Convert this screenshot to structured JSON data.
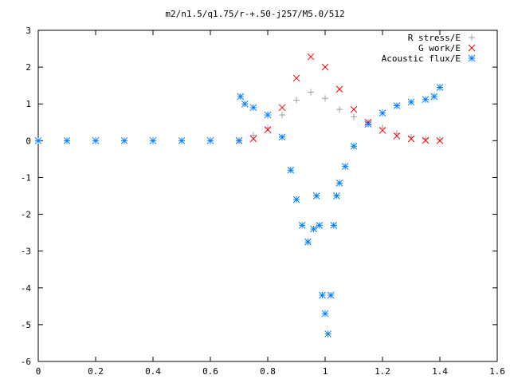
{
  "chart_data": {
    "type": "scatter",
    "title": "m2/n1.5/q1.75/r-+.50-j257/M5.0/512",
    "xlabel": "",
    "ylabel": "",
    "xlim": [
      0,
      1.6
    ],
    "ylim": [
      -6,
      3
    ],
    "x_ticks": [
      "0",
      "0.2",
      "0.4",
      "0.6",
      "0.8",
      "1",
      "1.2",
      "1.4",
      "1.6"
    ],
    "y_ticks": [
      "3",
      "2",
      "1",
      "0",
      "-1",
      "-2",
      "-3",
      "-4",
      "-5",
      "-6"
    ],
    "grid": false,
    "legend_position": "top-right",
    "series": [
      {
        "name": "R stress/E",
        "marker": "plus",
        "color": "#a0a0a0",
        "points": [
          [
            0.0,
            0
          ],
          [
            0.1,
            0
          ],
          [
            0.2,
            0
          ],
          [
            0.3,
            0
          ],
          [
            0.4,
            0
          ],
          [
            0.5,
            0
          ],
          [
            0.6,
            0
          ],
          [
            0.7,
            0
          ],
          [
            0.75,
            0.15
          ],
          [
            0.8,
            0.35
          ],
          [
            0.85,
            0.7
          ],
          [
            0.9,
            1.1
          ],
          [
            0.95,
            1.32
          ],
          [
            1.0,
            1.15
          ],
          [
            1.05,
            0.85
          ],
          [
            1.1,
            0.65
          ],
          [
            1.15,
            0.5
          ],
          [
            1.2,
            0.35
          ],
          [
            1.25,
            0.2
          ],
          [
            1.3,
            0.1
          ],
          [
            1.35,
            0.05
          ],
          [
            1.4,
            0.03
          ]
        ]
      },
      {
        "name": "G work/E",
        "marker": "cross",
        "color": "#ff0000",
        "points": [
          [
            0.7,
            0
          ],
          [
            0.75,
            0.05
          ],
          [
            0.8,
            0.3
          ],
          [
            0.85,
            0.9
          ],
          [
            0.9,
            1.7
          ],
          [
            0.95,
            2.28
          ],
          [
            1.0,
            2.0
          ],
          [
            1.05,
            1.4
          ],
          [
            1.1,
            0.85
          ],
          [
            1.15,
            0.5
          ],
          [
            1.2,
            0.28
          ],
          [
            1.25,
            0.13
          ],
          [
            1.3,
            0.05
          ],
          [
            1.35,
            0.01
          ],
          [
            1.4,
            0.0
          ]
        ]
      },
      {
        "name": "Acoustic flux/E",
        "marker": "star",
        "color": "#0080ff",
        "points": [
          [
            0.0,
            0
          ],
          [
            0.1,
            0
          ],
          [
            0.2,
            0
          ],
          [
            0.3,
            0
          ],
          [
            0.4,
            0
          ],
          [
            0.5,
            0
          ],
          [
            0.6,
            0
          ],
          [
            0.7,
            0
          ],
          [
            0.705,
            1.2
          ],
          [
            0.72,
            1.0
          ],
          [
            0.75,
            0.9
          ],
          [
            0.8,
            0.7
          ],
          [
            0.85,
            0.1
          ],
          [
            0.88,
            -0.8
          ],
          [
            0.9,
            -1.6
          ],
          [
            0.92,
            -2.3
          ],
          [
            0.94,
            -2.75
          ],
          [
            0.96,
            -2.4
          ],
          [
            0.97,
            -1.5
          ],
          [
            0.98,
            -2.3
          ],
          [
            0.99,
            -4.2
          ],
          [
            1.0,
            -4.7
          ],
          [
            1.01,
            -5.25
          ],
          [
            1.02,
            -4.2
          ],
          [
            1.03,
            -2.3
          ],
          [
            1.04,
            -1.5
          ],
          [
            1.05,
            -1.15
          ],
          [
            1.07,
            -0.7
          ],
          [
            1.1,
            -0.15
          ],
          [
            1.15,
            0.45
          ],
          [
            1.2,
            0.75
          ],
          [
            1.25,
            0.95
          ],
          [
            1.3,
            1.05
          ],
          [
            1.35,
            1.12
          ],
          [
            1.38,
            1.2
          ],
          [
            1.4,
            1.45
          ]
        ]
      }
    ]
  }
}
